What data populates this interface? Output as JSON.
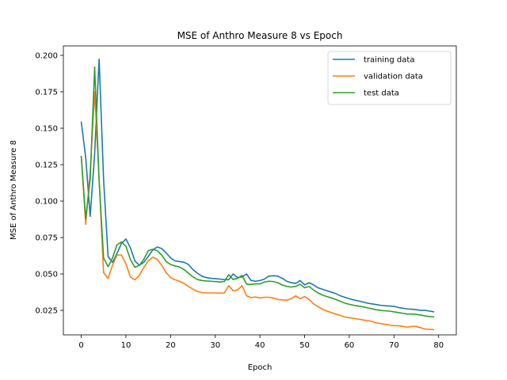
{
  "chart_data": {
    "type": "line",
    "title": "MSE of Anthro Measure 8 vs Epoch",
    "xlabel": "Epoch",
    "ylabel": "MSE of Anthro Measure 8",
    "xlim": [
      -4,
      83.95
    ],
    "ylim": [
      0.0082,
      0.2065
    ],
    "xticks": [
      0,
      10,
      20,
      30,
      40,
      50,
      60,
      70,
      80
    ],
    "yticks": [
      0.025,
      0.05,
      0.075,
      0.1,
      0.125,
      0.15,
      0.175,
      0.2
    ],
    "ytick_labels": [
      "0.025",
      "0.050",
      "0.075",
      "0.100",
      "0.125",
      "0.150",
      "0.175",
      "0.200"
    ],
    "grid": false,
    "legend_position": "top-right",
    "x": [
      0,
      1,
      2,
      3,
      4,
      5,
      6,
      7,
      8,
      9,
      10,
      11,
      12,
      13,
      14,
      15,
      16,
      17,
      18,
      19,
      20,
      21,
      22,
      23,
      24,
      25,
      26,
      27,
      28,
      29,
      30,
      31,
      32,
      33,
      34,
      35,
      36,
      37,
      38,
      39,
      40,
      41,
      42,
      43,
      44,
      45,
      46,
      47,
      48,
      49,
      50,
      51,
      52,
      53,
      54,
      55,
      56,
      57,
      58,
      59,
      60,
      61,
      62,
      63,
      64,
      65,
      66,
      67,
      68,
      69,
      70,
      71,
      72,
      73,
      74,
      75,
      76,
      77,
      78,
      79
    ],
    "series": [
      {
        "name": "training data",
        "color": "#1f77b4",
        "values": [
          0.1545,
          0.13,
          0.0895,
          0.1325,
          0.1975,
          0.115,
          0.062,
          0.058,
          0.064,
          0.071,
          0.074,
          0.068,
          0.059,
          0.056,
          0.058,
          0.062,
          0.0665,
          0.0685,
          0.0675,
          0.0645,
          0.061,
          0.059,
          0.0585,
          0.058,
          0.0565,
          0.053,
          0.0505,
          0.0485,
          0.0475,
          0.047,
          0.0468,
          0.0465,
          0.0462,
          0.046,
          0.05,
          0.0475,
          0.048,
          0.05,
          0.0455,
          0.045,
          0.0455,
          0.0465,
          0.0485,
          0.0488,
          0.0485,
          0.047,
          0.045,
          0.044,
          0.0435,
          0.0455,
          0.0425,
          0.044,
          0.0425,
          0.0405,
          0.0395,
          0.0385,
          0.0375,
          0.0365,
          0.035,
          0.034,
          0.033,
          0.0322,
          0.0315,
          0.0308,
          0.03,
          0.0295,
          0.029,
          0.0285,
          0.0282,
          0.028,
          0.0278,
          0.027,
          0.0265,
          0.026,
          0.0258,
          0.0255,
          0.025,
          0.025,
          0.0245,
          0.024
        ]
      },
      {
        "name": "validation data",
        "color": "#ff7f0e",
        "values": [
          0.131,
          0.084,
          0.12,
          0.175,
          0.115,
          0.051,
          0.047,
          0.056,
          0.063,
          0.063,
          0.057,
          0.048,
          0.046,
          0.049,
          0.0545,
          0.059,
          0.0615,
          0.06,
          0.056,
          0.051,
          0.0475,
          0.046,
          0.045,
          0.0435,
          0.0415,
          0.0395,
          0.038,
          0.0372,
          0.037,
          0.037,
          0.037,
          0.0368,
          0.0368,
          0.042,
          0.0385,
          0.039,
          0.042,
          0.035,
          0.0338,
          0.0342,
          0.0335,
          0.034,
          0.034,
          0.0335,
          0.0325,
          0.0322,
          0.032,
          0.033,
          0.035,
          0.033,
          0.0345,
          0.0325,
          0.0295,
          0.0275,
          0.0258,
          0.0245,
          0.0235,
          0.0225,
          0.0215,
          0.0205,
          0.02,
          0.0195,
          0.019,
          0.0185,
          0.018,
          0.0175,
          0.0165,
          0.016,
          0.0155,
          0.015,
          0.0145,
          0.0145,
          0.014,
          0.0135,
          0.014,
          0.014,
          0.013,
          0.0122,
          0.012,
          0.0118
        ]
      },
      {
        "name": "test data",
        "color": "#2ca02c",
        "values": [
          0.131,
          0.088,
          0.115,
          0.192,
          0.114,
          0.061,
          0.055,
          0.061,
          0.07,
          0.072,
          0.069,
          0.06,
          0.0545,
          0.056,
          0.06,
          0.066,
          0.067,
          0.066,
          0.063,
          0.0585,
          0.0565,
          0.0555,
          0.0548,
          0.053,
          0.0505,
          0.048,
          0.0462,
          0.0455,
          0.0452,
          0.045,
          0.0448,
          0.0445,
          0.0448,
          0.0495,
          0.0462,
          0.047,
          0.049,
          0.043,
          0.0428,
          0.0432,
          0.0432,
          0.0445,
          0.045,
          0.0448,
          0.044,
          0.0425,
          0.0415,
          0.041,
          0.0415,
          0.043,
          0.0405,
          0.0415,
          0.039,
          0.037,
          0.0355,
          0.0345,
          0.0335,
          0.0325,
          0.0312,
          0.03,
          0.0292,
          0.0285,
          0.028,
          0.0275,
          0.0268,
          0.0262,
          0.0255,
          0.025,
          0.0247,
          0.0245,
          0.024,
          0.0235,
          0.023,
          0.0225,
          0.0225,
          0.0222,
          0.0218,
          0.0212,
          0.0208,
          0.0205
        ]
      }
    ]
  }
}
